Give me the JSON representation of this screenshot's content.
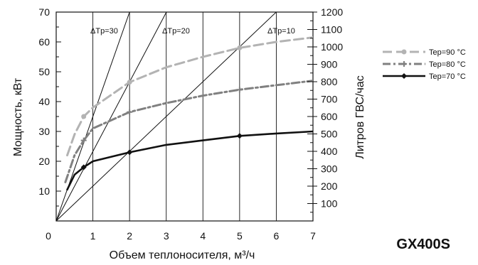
{
  "chart_data": {
    "type": "line",
    "model_label": "GX400S",
    "xlabel": "Объем теплоносителя, м³/ч",
    "ylabel_left": "Мощность, кВт",
    "ylabel_right": "Литров ГВС/час",
    "xlim": [
      0,
      7
    ],
    "ylim_left": [
      0,
      70
    ],
    "ylim_right": [
      0,
      1200
    ],
    "x_ticks": [
      "0",
      "1",
      "2",
      "3",
      "4",
      "5",
      "6",
      "7"
    ],
    "y_left_ticks": [
      "10",
      "20",
      "30",
      "40",
      "50",
      "60",
      "70"
    ],
    "y_right_ticks": [
      "100",
      "200",
      "300",
      "400",
      "500",
      "600",
      "700",
      "800",
      "900",
      "1000",
      "1100",
      "1200"
    ],
    "grid": "vertical lines at x ticks",
    "legend_position": "right",
    "delta_t_lines": [
      {
        "label": "ΔTp=30",
        "slope": 35
      },
      {
        "label": "ΔTp=20",
        "slope": 23.3
      },
      {
        "label": "ΔTp=10",
        "slope": 11.67
      }
    ],
    "series": [
      {
        "name": "Tep=90 °C",
        "color": "#b3b3b3",
        "dash": "long-dash",
        "marker": "circle",
        "x": [
          0.3,
          0.5,
          0.75,
          1.0,
          2.0,
          3.0,
          4.0,
          5.0,
          6.0,
          7.0
        ],
        "y": [
          22,
          29,
          35,
          38,
          46.5,
          51.5,
          55,
          58,
          60,
          61.5
        ],
        "marker_x": [
          0.75,
          2.0,
          5.0
        ]
      },
      {
        "name": "Tep=80 °C",
        "color": "#808080",
        "dash": "dash-dot",
        "marker": "plus",
        "x": [
          0.25,
          0.5,
          0.75,
          1.0,
          2.0,
          3.0,
          4.0,
          5.0,
          6.0,
          7.0
        ],
        "y": [
          13,
          22,
          27,
          31,
          36.5,
          39.5,
          42,
          44,
          45.5,
          47
        ],
        "marker_x": [
          0.75,
          2.0,
          5.0
        ]
      },
      {
        "name": "Tep=70 °C",
        "color": "#111111",
        "dash": "solid",
        "marker": "diamond",
        "x": [
          0.3,
          0.5,
          0.75,
          1.0,
          2.0,
          3.0,
          4.0,
          5.0,
          6.0,
          7.0
        ],
        "y": [
          10.5,
          15.5,
          18,
          20,
          23,
          25.5,
          27,
          28.5,
          29.3,
          30
        ],
        "marker_x": [
          0.75,
          2.0,
          5.0
        ]
      }
    ]
  }
}
